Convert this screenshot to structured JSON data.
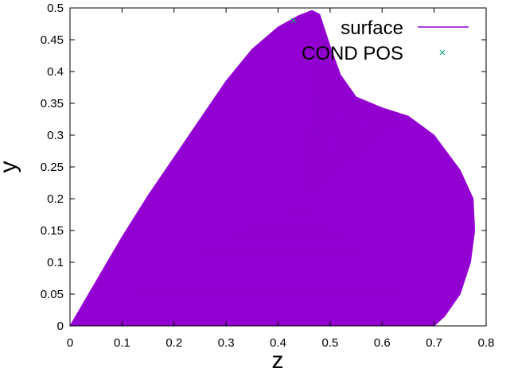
{
  "chart_data": {
    "type": "area",
    "title": "",
    "xlabel": "z",
    "ylabel": "y",
    "xlim": [
      0,
      0.8
    ],
    "ylim": [
      0,
      0.5
    ],
    "x_ticks": [
      "0",
      "0.1",
      "0.2",
      "0.3",
      "0.4",
      "0.5",
      "0.6",
      "0.7",
      "0.8"
    ],
    "y_ticks": [
      "0",
      "0.05",
      "0.1",
      "0.15",
      "0.2",
      "0.25",
      "0.3",
      "0.35",
      "0.4",
      "0.45",
      "0.5"
    ],
    "grid": false,
    "legend_position": "top-right",
    "series": [
      {
        "name": "surface",
        "kind": "filled region",
        "color": "#9400d3",
        "outline": [
          {
            "x": 0.0,
            "y": 0.0
          },
          {
            "x": 0.05,
            "y": 0.07
          },
          {
            "x": 0.1,
            "y": 0.14
          },
          {
            "x": 0.15,
            "y": 0.205
          },
          {
            "x": 0.2,
            "y": 0.265
          },
          {
            "x": 0.25,
            "y": 0.325
          },
          {
            "x": 0.3,
            "y": 0.385
          },
          {
            "x": 0.35,
            "y": 0.435
          },
          {
            "x": 0.4,
            "y": 0.47
          },
          {
            "x": 0.44,
            "y": 0.488
          },
          {
            "x": 0.465,
            "y": 0.496
          },
          {
            "x": 0.48,
            "y": 0.49
          },
          {
            "x": 0.5,
            "y": 0.44
          },
          {
            "x": 0.52,
            "y": 0.395
          },
          {
            "x": 0.55,
            "y": 0.36
          },
          {
            "x": 0.6,
            "y": 0.343
          },
          {
            "x": 0.65,
            "y": 0.33
          },
          {
            "x": 0.7,
            "y": 0.3
          },
          {
            "x": 0.75,
            "y": 0.245
          },
          {
            "x": 0.775,
            "y": 0.2
          },
          {
            "x": 0.778,
            "y": 0.15
          },
          {
            "x": 0.77,
            "y": 0.1
          },
          {
            "x": 0.75,
            "y": 0.05
          },
          {
            "x": 0.72,
            "y": 0.015
          },
          {
            "x": 0.7,
            "y": 0.0
          }
        ]
      },
      {
        "name": "COND POS",
        "kind": "points",
        "marker": "x",
        "color": "#009e73",
        "points": [
          {
            "x": 0.43,
            "y": 0.48
          }
        ]
      }
    ]
  }
}
